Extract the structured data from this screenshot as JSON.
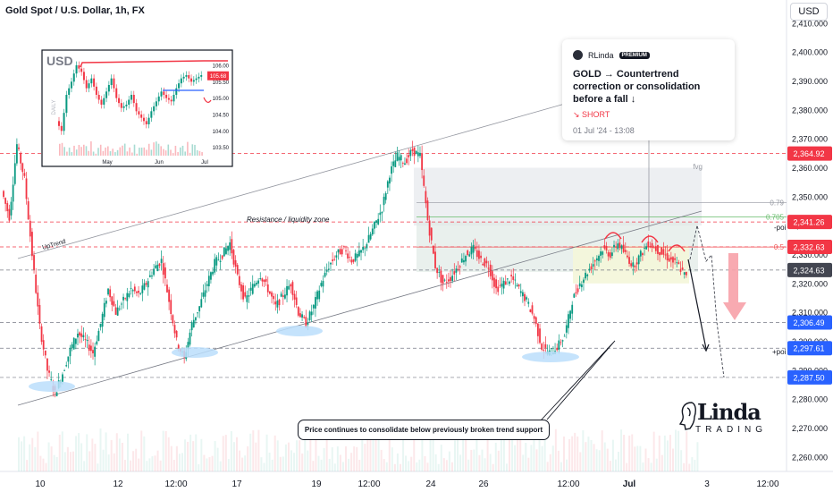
{
  "header": {
    "title": "Gold Spot / U.S. Dollar, 1h, FX",
    "currency": "USD"
  },
  "idea": {
    "author": "RLinda",
    "badge": "PREMIUM",
    "title": "GOLD → Countertrend correction or consolidation before a fall ↓",
    "direction": "↘ SHORT",
    "date": "01 Jul '24 - 13:08"
  },
  "callout": "Price continues to consolidate below previously broken trend support",
  "logo": {
    "main": "Linda",
    "sub": "TRADING"
  },
  "chart_data": [
    {
      "type": "candlestick",
      "title": "Gold Spot / U.S. Dollar, 1h, FX",
      "y_ticks": [
        2260,
        2270,
        2280,
        2290,
        2300,
        2310,
        2320,
        2330,
        2340,
        2350,
        2360,
        2370,
        2380,
        2390,
        2400,
        2410
      ],
      "ylim": [
        2255,
        2418
      ],
      "x_ticks": [
        "10",
        "12",
        "12:00",
        "17",
        "19",
        "12:00",
        "24",
        "26",
        "12:00",
        "Jul",
        "3",
        "12:00"
      ],
      "price_labels": [
        {
          "value": 2364.92,
          "text": "2,364.92",
          "color": "#f23645"
        },
        {
          "value": 2341.26,
          "text": "2,341.26",
          "color": "#f23645"
        },
        {
          "value": 2332.63,
          "text": "2,332.63",
          "color": "#f23645"
        },
        {
          "value": 2324.63,
          "text": "2,324.63",
          "color": "#434651"
        },
        {
          "value": 2306.49,
          "text": "2,306.49",
          "color": "#2962ff"
        },
        {
          "value": 2297.61,
          "text": "2,297.61",
          "color": "#2962ff"
        },
        {
          "value": 2287.5,
          "text": "2,287.50",
          "color": "#2962ff"
        }
      ],
      "annotations": [
        {
          "text": "UpTrend"
        },
        {
          "text": "Resistance / liquidity zone"
        },
        {
          "text": "fvg"
        },
        {
          "text": "0.79"
        },
        {
          "text": "0.705"
        },
        {
          "text": "0.5"
        },
        {
          "text": "-poi"
        },
        {
          "text": "+poi"
        }
      ],
      "price_path": [
        2352,
        2343,
        2368,
        2356,
        2330,
        2305,
        2290,
        2282,
        2289,
        2297,
        2303,
        2300,
        2296,
        2306,
        2318,
        2310,
        2314,
        2318,
        2316,
        2320,
        2325,
        2328,
        2314,
        2300,
        2294,
        2306,
        2312,
        2320,
        2327,
        2330,
        2334,
        2322,
        2314,
        2319,
        2323,
        2318,
        2312,
        2316,
        2320,
        2310,
        2306,
        2312,
        2320,
        2326,
        2330,
        2332,
        2328,
        2330,
        2334,
        2340,
        2346,
        2358,
        2364,
        2362,
        2366,
        2364,
        2342,
        2326,
        2320,
        2322,
        2326,
        2330,
        2332,
        2328,
        2326,
        2318,
        2320,
        2322,
        2318,
        2314,
        2308,
        2298,
        2296,
        2298,
        2302,
        2314,
        2320,
        2324,
        2328,
        2332,
        2330,
        2334,
        2330,
        2326,
        2330,
        2334,
        2332,
        2330,
        2328,
        2326,
        2322
      ]
    },
    {
      "type": "line",
      "title": "USD",
      "y_ticks": [
        "106.00",
        "105.50",
        "105.00",
        "104.50",
        "104.00",
        "103.50"
      ],
      "ylim": [
        103.3,
        106.3
      ],
      "x_ticks": [
        "May",
        "Jun",
        "Jul"
      ],
      "price_labels": [
        {
          "value": 105.68,
          "text": "105.68",
          "color": "#f23645"
        }
      ],
      "values": [
        104.3,
        104.0,
        105.1,
        105.5,
        106.0,
        105.8,
        105.3,
        105.6,
        105.1,
        104.8,
        105.2,
        105.6,
        105.0,
        104.7,
        104.8,
        105.1,
        104.6,
        104.4,
        104.2,
        104.6,
        104.9,
        105.2,
        105.0,
        104.9,
        105.3,
        105.6,
        105.7,
        105.5,
        105.6,
        105.7
      ]
    }
  ]
}
